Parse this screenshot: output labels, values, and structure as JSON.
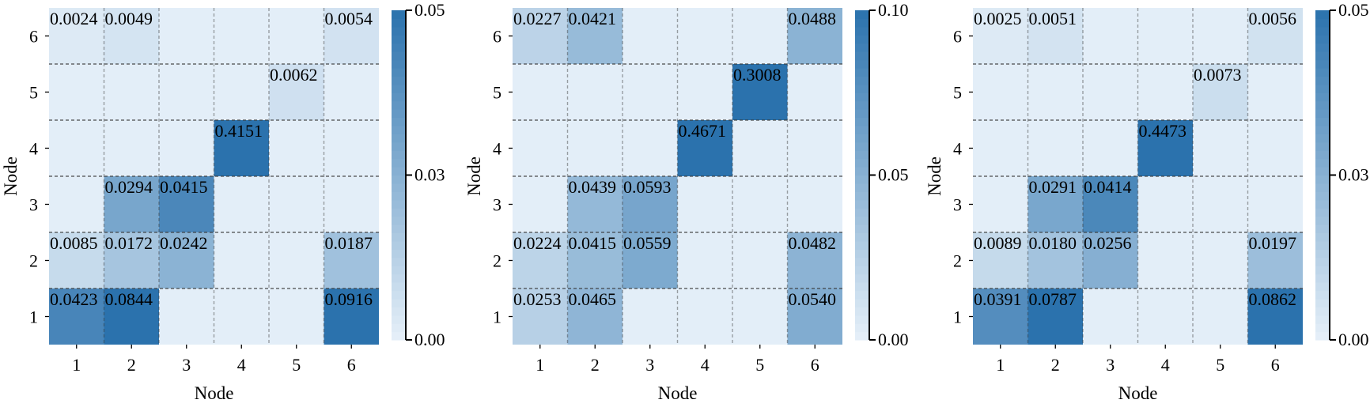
{
  "chart_data": [
    {
      "type": "heatmap",
      "xlabel": "Node",
      "ylabel": "Node",
      "x": [
        1,
        2,
        3,
        4,
        5,
        6
      ],
      "y": [
        1,
        2,
        3,
        4,
        5,
        6
      ],
      "colorbar": {
        "range": [
          0.0,
          0.05
        ],
        "ticks": [
          "0.00",
          "0.03",
          "0.05"
        ]
      },
      "cells": [
        {
          "x": 1,
          "y": 6,
          "label": "0.0024",
          "value": 0.0024
        },
        {
          "x": 2,
          "y": 6,
          "label": "0.0049",
          "value": 0.0049
        },
        {
          "x": 6,
          "y": 6,
          "label": "0.0054",
          "value": 0.0054
        },
        {
          "x": 5,
          "y": 5,
          "label": "0.0062",
          "value": 0.0062
        },
        {
          "x": 4,
          "y": 4,
          "label": "0.4151",
          "value": 0.4151
        },
        {
          "x": 2,
          "y": 3,
          "label": "0.0294",
          "value": 0.0294
        },
        {
          "x": 3,
          "y": 3,
          "label": "0.0415",
          "value": 0.0415
        },
        {
          "x": 1,
          "y": 2,
          "label": "0.0085",
          "value": 0.0085
        },
        {
          "x": 2,
          "y": 2,
          "label": "0.0172",
          "value": 0.0172
        },
        {
          "x": 3,
          "y": 2,
          "label": "0.0242",
          "value": 0.0242
        },
        {
          "x": 6,
          "y": 2,
          "label": "0.0187",
          "value": 0.0187
        },
        {
          "x": 1,
          "y": 1,
          "label": "0.0423",
          "value": 0.0423
        },
        {
          "x": 2,
          "y": 1,
          "label": "0.0844",
          "value": 0.0844
        },
        {
          "x": 6,
          "y": 1,
          "label": "0.0916",
          "value": 0.0916
        }
      ]
    },
    {
      "type": "heatmap",
      "xlabel": "Node",
      "ylabel": "Node",
      "x": [
        1,
        2,
        3,
        4,
        5,
        6
      ],
      "y": [
        1,
        2,
        3,
        4,
        5,
        6
      ],
      "colorbar": {
        "range": [
          0.0,
          0.1
        ],
        "ticks": [
          "0.00",
          "0.05",
          "0.10"
        ]
      },
      "cells": [
        {
          "x": 1,
          "y": 6,
          "label": "0.0227",
          "value": 0.0227
        },
        {
          "x": 2,
          "y": 6,
          "label": "0.0421",
          "value": 0.0421
        },
        {
          "x": 6,
          "y": 6,
          "label": "0.0488",
          "value": 0.0488
        },
        {
          "x": 5,
          "y": 5,
          "label": "0.3008",
          "value": 0.3008
        },
        {
          "x": 4,
          "y": 4,
          "label": "0.4671",
          "value": 0.4671
        },
        {
          "x": 2,
          "y": 3,
          "label": "0.0439",
          "value": 0.0439
        },
        {
          "x": 3,
          "y": 3,
          "label": "0.0593",
          "value": 0.0593
        },
        {
          "x": 1,
          "y": 2,
          "label": "0.0224",
          "value": 0.0224
        },
        {
          "x": 2,
          "y": 2,
          "label": "0.0415",
          "value": 0.0415
        },
        {
          "x": 3,
          "y": 2,
          "label": "0.0559",
          "value": 0.0559
        },
        {
          "x": 6,
          "y": 2,
          "label": "0.0482",
          "value": 0.0482
        },
        {
          "x": 1,
          "y": 1,
          "label": "0.0253",
          "value": 0.0253
        },
        {
          "x": 2,
          "y": 1,
          "label": "0.0465",
          "value": 0.0465
        },
        {
          "x": 6,
          "y": 1,
          "label": "0.0540",
          "value": 0.054
        }
      ]
    },
    {
      "type": "heatmap",
      "xlabel": "Node",
      "ylabel": "Node",
      "x": [
        1,
        2,
        3,
        4,
        5,
        6
      ],
      "y": [
        1,
        2,
        3,
        4,
        5,
        6
      ],
      "colorbar": {
        "range": [
          0.0,
          0.05
        ],
        "ticks": [
          "0.00",
          "0.03",
          "0.05"
        ]
      },
      "cells": [
        {
          "x": 1,
          "y": 6,
          "label": "0.0025",
          "value": 0.0025
        },
        {
          "x": 2,
          "y": 6,
          "label": "0.0051",
          "value": 0.0051
        },
        {
          "x": 6,
          "y": 6,
          "label": "0.0056",
          "value": 0.0056
        },
        {
          "x": 5,
          "y": 5,
          "label": "0.0073",
          "value": 0.0073
        },
        {
          "x": 4,
          "y": 4,
          "label": "0.4473",
          "value": 0.4473
        },
        {
          "x": 2,
          "y": 3,
          "label": "0.0291",
          "value": 0.0291
        },
        {
          "x": 3,
          "y": 3,
          "label": "0.0414",
          "value": 0.0414
        },
        {
          "x": 1,
          "y": 2,
          "label": "0.0089",
          "value": 0.0089
        },
        {
          "x": 2,
          "y": 2,
          "label": "0.0180",
          "value": 0.018
        },
        {
          "x": 3,
          "y": 2,
          "label": "0.0256",
          "value": 0.0256
        },
        {
          "x": 6,
          "y": 2,
          "label": "0.0197",
          "value": 0.0197
        },
        {
          "x": 1,
          "y": 1,
          "label": "0.0391",
          "value": 0.0391
        },
        {
          "x": 2,
          "y": 1,
          "label": "0.0787",
          "value": 0.0787
        },
        {
          "x": 6,
          "y": 1,
          "label": "0.0862",
          "value": 0.0862
        }
      ]
    }
  ],
  "colors": {
    "background_cell": "#e3eef8",
    "colormap_low": "#e6f0f9",
    "colormap_high": "#2b72ad",
    "grid": "#3a3a3a"
  }
}
